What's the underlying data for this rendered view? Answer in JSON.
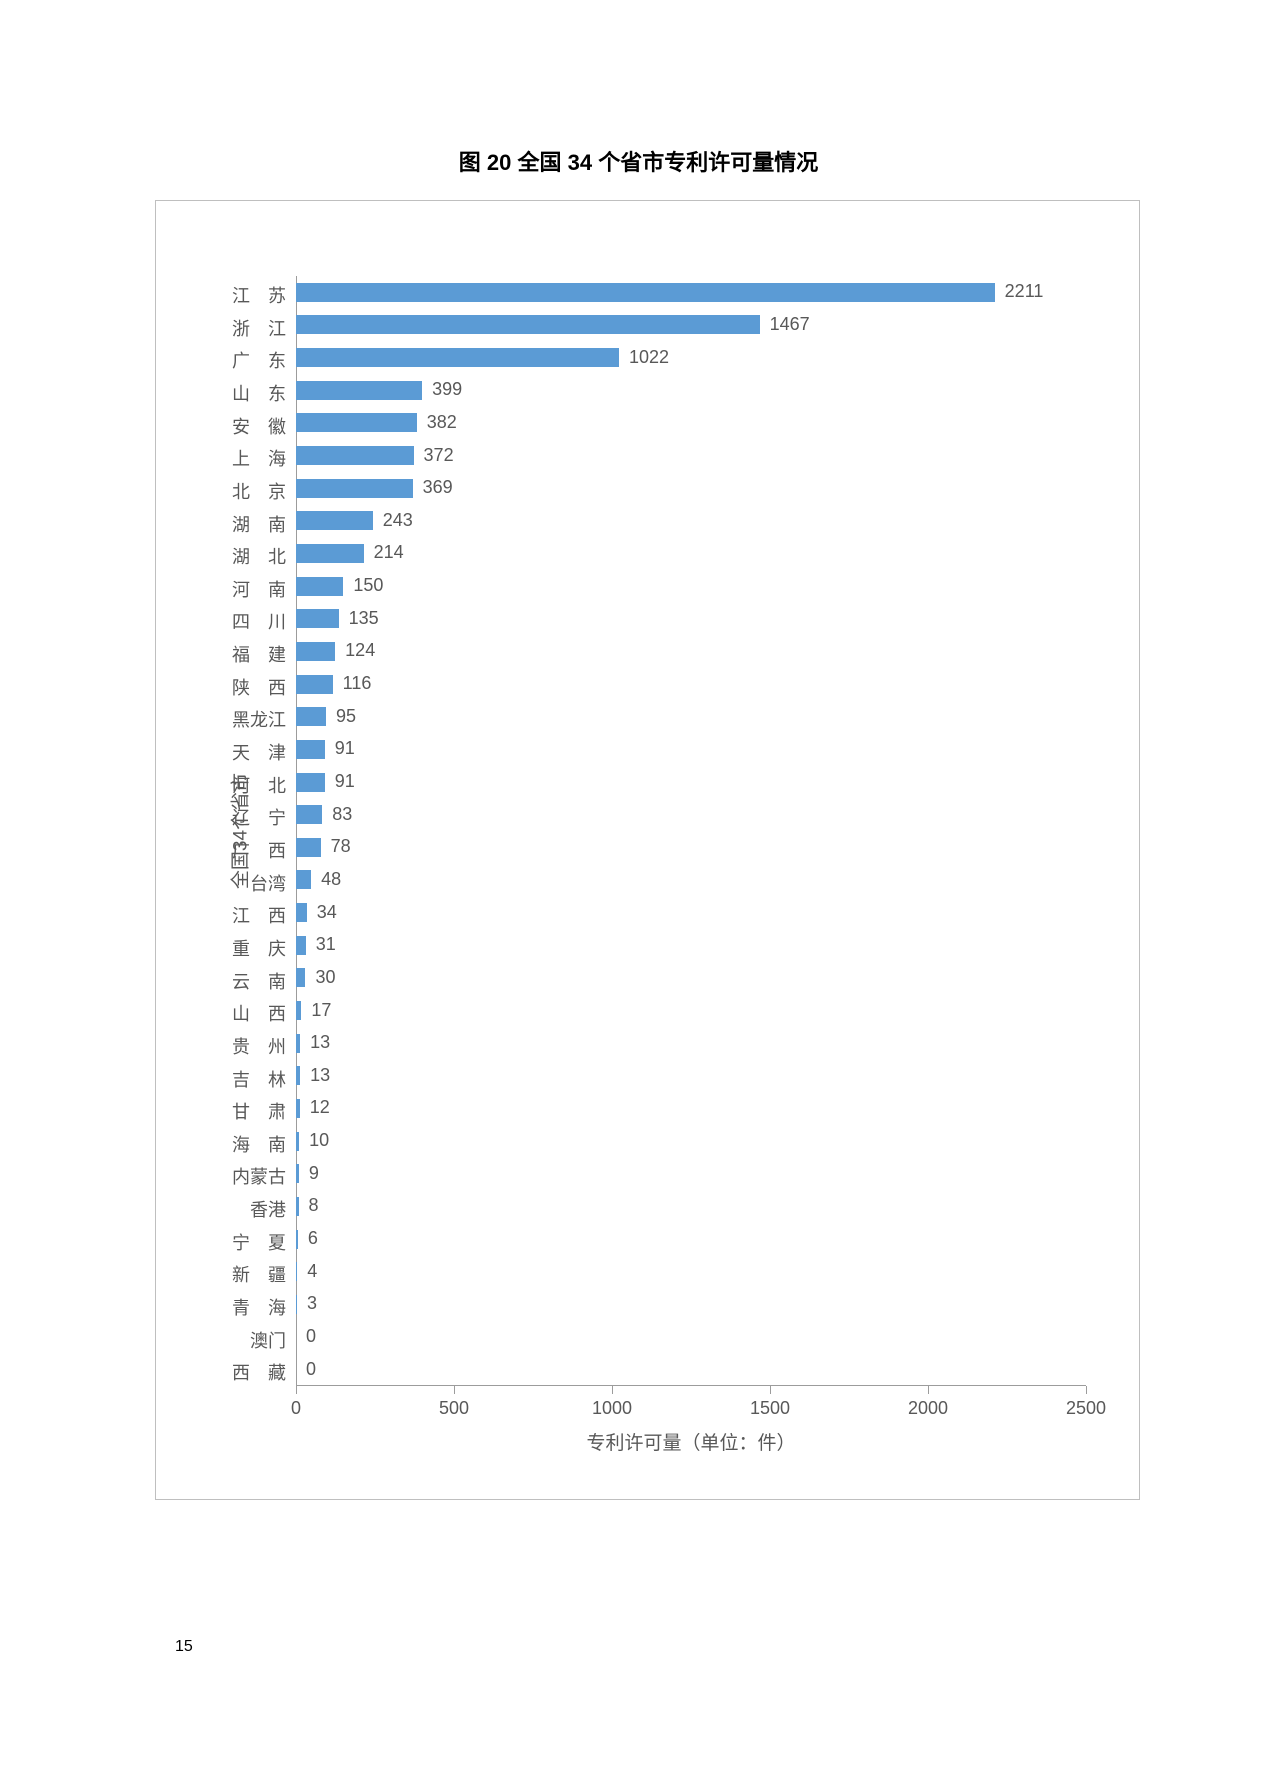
{
  "title": "图 20 全国 34 个省市专利许可量情况",
  "page_number": "15",
  "chart": {
    "type": "bar-horizontal",
    "bar_color": "#5b9bd5",
    "text_color": "#585858",
    "axis_color": "#9c9c9c",
    "border_color": "#bfbfbf",
    "background_color": "#ffffff",
    "label_fontsize": 18,
    "title_fontsize": 22,
    "x_axis": {
      "title": "专利许可量（单位：件）",
      "min": 0,
      "max": 2500,
      "tick_step": 500,
      "ticks": [
        0,
        500,
        1000,
        1500,
        2000,
        2500
      ]
    },
    "y_axis": {
      "title": "全国34个省市"
    },
    "categories": [
      "江　苏",
      "浙　江",
      "广　东",
      "山　东",
      "安　徽",
      "上　海",
      "北　京",
      "湖　南",
      "湖　北",
      "河　南",
      "四　川",
      "福　建",
      "陕　西",
      "黑龙江",
      "天　津",
      "河　北",
      "辽　宁",
      "广　西",
      "台湾",
      "江　西",
      "重　庆",
      "云　南",
      "山　西",
      "贵　州",
      "吉　林",
      "甘　肃",
      "海　南",
      "内蒙古",
      "香港",
      "宁　夏",
      "新　疆",
      "青　海",
      "澳门",
      "西　藏"
    ],
    "values": [
      2211,
      1467,
      1022,
      399,
      382,
      372,
      369,
      243,
      214,
      150,
      135,
      124,
      116,
      95,
      91,
      91,
      83,
      78,
      48,
      34,
      31,
      30,
      17,
      13,
      13,
      12,
      10,
      9,
      8,
      6,
      4,
      3,
      0,
      0
    ]
  }
}
